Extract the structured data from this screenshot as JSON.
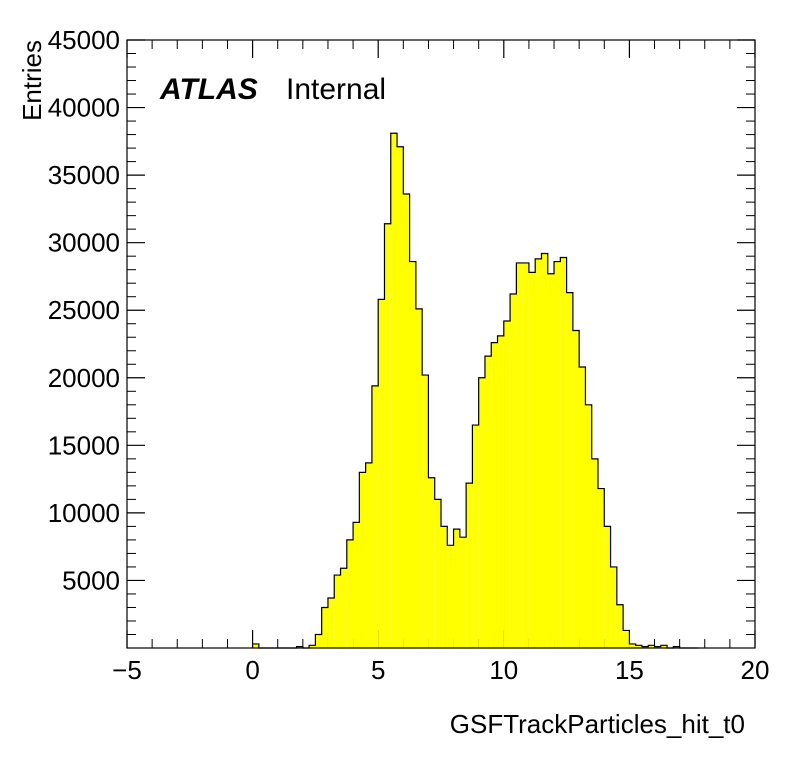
{
  "chart_data": {
    "type": "histogram",
    "title": "",
    "xlabel": "GSFTrackParticles_hit_t0",
    "ylabel": "Entries",
    "annotation": {
      "experiment": "ATLAS",
      "status": "Internal"
    },
    "xlim": [
      -5,
      20
    ],
    "ylim": [
      0,
      45000
    ],
    "x_ticks": [
      -5,
      0,
      5,
      10,
      15,
      20
    ],
    "y_ticks": [
      5000,
      10000,
      15000,
      20000,
      25000,
      30000,
      35000,
      40000,
      45000
    ],
    "bin_width": 0.25,
    "bins_start": 0,
    "series": [
      {
        "fill_color": "#ffff00",
        "line_color": "#000000",
        "values": [
          300,
          0,
          0,
          0,
          0,
          0,
          0,
          100,
          0,
          200,
          1000,
          3000,
          3700,
          5400,
          5900,
          8000,
          9300,
          13000,
          13700,
          19400,
          25800,
          31400,
          38100,
          37100,
          33600,
          28600,
          25100,
          20200,
          12600,
          11000,
          9000,
          7600,
          8800,
          8200,
          12200,
          16500,
          20000,
          21600,
          22600,
          23100,
          24200,
          26200,
          28500,
          28500,
          27800,
          28800,
          29200,
          27700,
          28600,
          28900,
          26300,
          23500,
          20800,
          18000,
          14000,
          11800,
          9000,
          6000,
          3200,
          1300,
          300,
          200,
          100,
          200,
          100,
          200,
          0,
          100,
          0,
          0,
          0
        ]
      }
    ],
    "grid": false,
    "legend": "none"
  }
}
